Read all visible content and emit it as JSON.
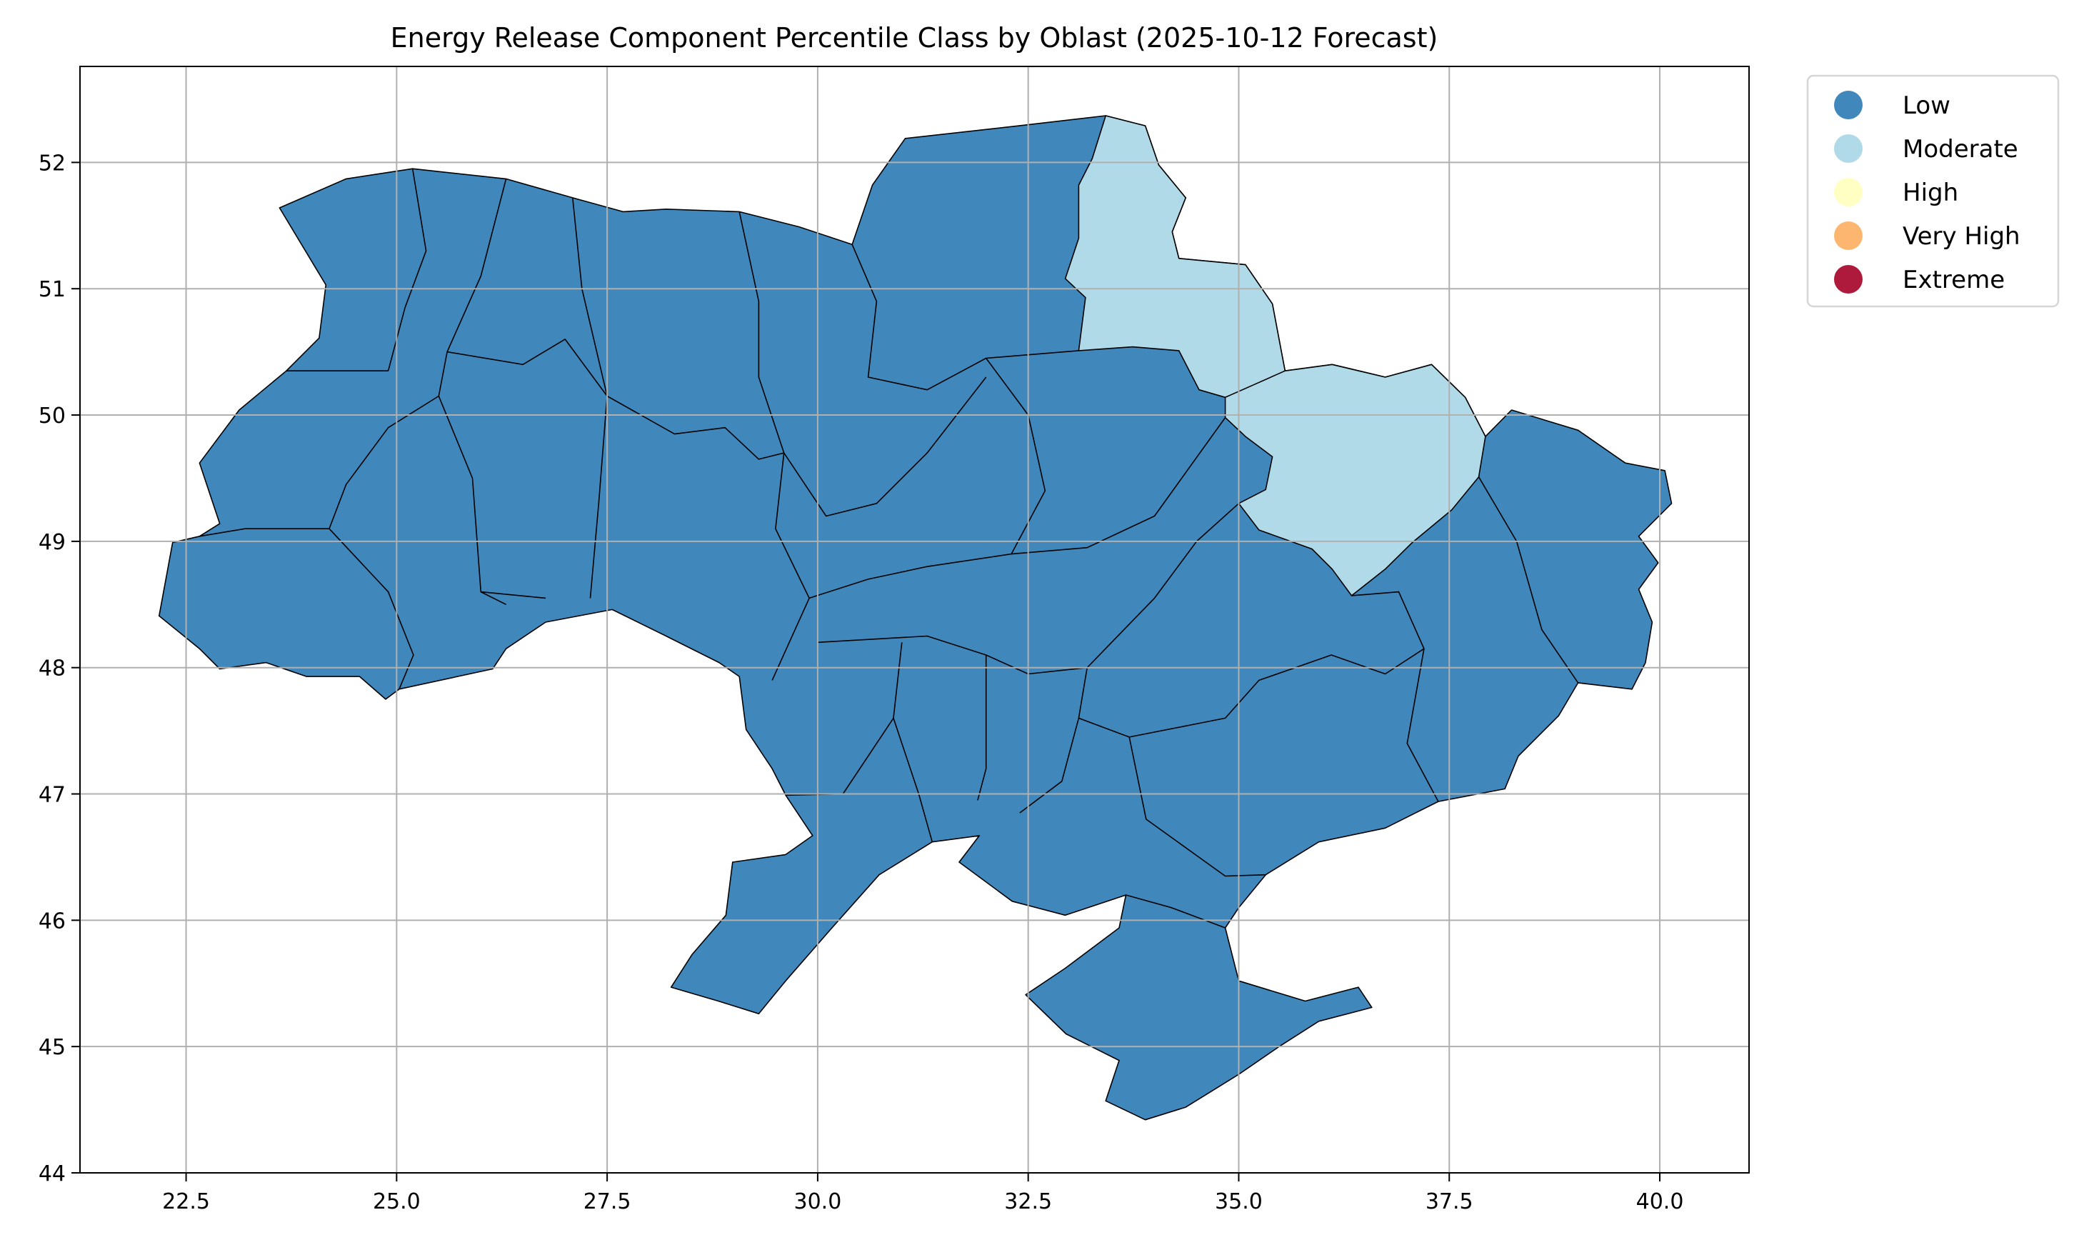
{
  "chart_data": {
    "type": "choropleth",
    "title": "Energy Release Component Percentile Class by Oblast (2025-10-12 Forecast)",
    "xlabel": "",
    "ylabel": "",
    "xlim": [
      21.24,
      41.06
    ],
    "ylim": [
      44.0,
      52.76
    ],
    "xticks": [
      "22.5",
      "25.0",
      "27.5",
      "30.0",
      "32.5",
      "35.0",
      "37.5",
      "40.0"
    ],
    "xtick_values": [
      22.5,
      25.0,
      27.5,
      30.0,
      32.5,
      35.0,
      37.5,
      40.0
    ],
    "yticks": [
      "44",
      "45",
      "46",
      "47",
      "48",
      "49",
      "50",
      "51",
      "52"
    ],
    "ytick_values": [
      44,
      45,
      46,
      47,
      48,
      49,
      50,
      51,
      52
    ],
    "grid": true,
    "legend_placement": "outside-top-right",
    "legend": [
      {
        "label": "Low",
        "color": "#4087bc"
      },
      {
        "label": "Moderate",
        "color": "#b1dae8"
      },
      {
        "label": "High",
        "color": "#ffffc4"
      },
      {
        "label": "Very High",
        "color": "#fdb66f"
      },
      {
        "label": "Extreme",
        "color": "#ad1a3c"
      }
    ],
    "regions": [
      {
        "class": "Low",
        "coords": [
          [
            23.61,
            51.64
          ],
          [
            24.4,
            51.87
          ],
          [
            25.19,
            51.95
          ],
          [
            26.3,
            51.87
          ],
          [
            27.09,
            51.72
          ],
          [
            27.69,
            51.61
          ],
          [
            28.2,
            51.63
          ],
          [
            29.07,
            51.61
          ],
          [
            29.78,
            51.49
          ],
          [
            30.41,
            51.35
          ],
          [
            30.65,
            51.82
          ],
          [
            31.04,
            52.19
          ],
          [
            32.39,
            52.29
          ],
          [
            33.42,
            52.37
          ],
          [
            33.89,
            52.29
          ],
          [
            34.05,
            51.98
          ],
          [
            34.37,
            51.72
          ],
          [
            34.21,
            51.45
          ],
          [
            34.29,
            51.24
          ],
          [
            35.08,
            51.19
          ],
          [
            35.4,
            50.88
          ],
          [
            35.55,
            50.35
          ],
          [
            36.11,
            50.4
          ],
          [
            36.74,
            50.3
          ],
          [
            37.29,
            50.4
          ],
          [
            37.69,
            50.14
          ],
          [
            37.93,
            49.83
          ],
          [
            38.24,
            50.04
          ],
          [
            39.03,
            49.88
          ],
          [
            39.59,
            49.62
          ],
          [
            40.06,
            49.56
          ],
          [
            40.14,
            49.3
          ],
          [
            39.75,
            49.04
          ],
          [
            39.98,
            48.83
          ],
          [
            39.75,
            48.62
          ],
          [
            39.91,
            48.36
          ],
          [
            39.83,
            48.04
          ],
          [
            39.67,
            47.83
          ],
          [
            39.03,
            47.88
          ],
          [
            38.8,
            47.62
          ],
          [
            38.32,
            47.3
          ],
          [
            38.16,
            47.04
          ],
          [
            37.37,
            46.94
          ],
          [
            36.74,
            46.73
          ],
          [
            35.95,
            46.62
          ],
          [
            35.32,
            46.36
          ],
          [
            35.0,
            46.1
          ],
          [
            34.84,
            45.94
          ],
          [
            35.0,
            45.52
          ],
          [
            35.79,
            45.36
          ],
          [
            36.42,
            45.47
          ],
          [
            36.58,
            45.31
          ],
          [
            35.95,
            45.2
          ],
          [
            35.48,
            45.0
          ],
          [
            35.0,
            44.78
          ],
          [
            34.37,
            44.52
          ],
          [
            33.89,
            44.42
          ],
          [
            33.42,
            44.57
          ],
          [
            33.58,
            44.89
          ],
          [
            32.95,
            45.1
          ],
          [
            32.47,
            45.41
          ],
          [
            32.94,
            45.62
          ],
          [
            33.58,
            45.94
          ],
          [
            33.66,
            46.2
          ],
          [
            32.94,
            46.04
          ],
          [
            32.31,
            46.15
          ],
          [
            31.68,
            46.46
          ],
          [
            31.92,
            46.67
          ],
          [
            31.36,
            46.62
          ],
          [
            30.73,
            46.36
          ],
          [
            30.17,
            45.94
          ],
          [
            29.62,
            45.52
          ],
          [
            29.3,
            45.26
          ],
          [
            28.82,
            45.36
          ],
          [
            28.26,
            45.47
          ],
          [
            28.51,
            45.73
          ],
          [
            28.91,
            46.04
          ],
          [
            28.99,
            46.46
          ],
          [
            29.62,
            46.52
          ],
          [
            29.94,
            46.67
          ],
          [
            29.62,
            46.99
          ],
          [
            29.46,
            47.2
          ],
          [
            29.15,
            47.51
          ],
          [
            29.07,
            47.93
          ],
          [
            28.83,
            48.04
          ],
          [
            28.2,
            48.25
          ],
          [
            27.56,
            48.46
          ],
          [
            26.77,
            48.36
          ],
          [
            26.3,
            48.15
          ],
          [
            26.14,
            47.99
          ],
          [
            25.03,
            47.83
          ],
          [
            24.87,
            47.75
          ],
          [
            24.56,
            47.93
          ],
          [
            23.93,
            47.93
          ],
          [
            23.45,
            48.04
          ],
          [
            22.9,
            47.99
          ],
          [
            22.66,
            48.15
          ],
          [
            22.18,
            48.41
          ],
          [
            22.34,
            48.99
          ],
          [
            22.66,
            49.04
          ],
          [
            22.9,
            49.14
          ],
          [
            22.66,
            49.62
          ],
          [
            23.13,
            50.04
          ],
          [
            23.69,
            50.35
          ],
          [
            24.08,
            50.61
          ],
          [
            24.16,
            51.03
          ]
        ]
      },
      {
        "class": "Moderate",
        "coords": [
          [
            33.42,
            52.37
          ],
          [
            33.89,
            52.29
          ],
          [
            34.05,
            51.98
          ],
          [
            34.37,
            51.72
          ],
          [
            34.21,
            51.45
          ],
          [
            34.29,
            51.24
          ],
          [
            35.08,
            51.19
          ],
          [
            35.4,
            50.88
          ],
          [
            35.55,
            50.35
          ],
          [
            35.24,
            50.25
          ],
          [
            34.84,
            50.14
          ],
          [
            34.53,
            50.2
          ],
          [
            34.29,
            50.51
          ],
          [
            33.74,
            50.54
          ],
          [
            33.1,
            50.51
          ],
          [
            33.18,
            50.93
          ],
          [
            32.94,
            51.08
          ],
          [
            33.1,
            51.4
          ],
          [
            33.1,
            51.82
          ],
          [
            33.26,
            52.03
          ]
        ]
      },
      {
        "class": "Moderate",
        "coords": [
          [
            34.84,
            50.14
          ],
          [
            35.55,
            50.35
          ],
          [
            36.11,
            50.4
          ],
          [
            36.74,
            50.3
          ],
          [
            37.29,
            50.4
          ],
          [
            37.69,
            50.14
          ],
          [
            37.93,
            49.83
          ],
          [
            37.85,
            49.51
          ],
          [
            37.53,
            49.25
          ],
          [
            37.06,
            48.99
          ],
          [
            36.74,
            48.78
          ],
          [
            36.34,
            48.57
          ],
          [
            36.11,
            48.78
          ],
          [
            35.87,
            48.94
          ],
          [
            35.24,
            49.09
          ],
          [
            35.0,
            49.3
          ],
          [
            35.32,
            49.41
          ],
          [
            35.4,
            49.67
          ],
          [
            35.08,
            49.83
          ],
          [
            34.84,
            49.98
          ]
        ]
      }
    ],
    "borders": [
      [
        [
          25.19,
          51.95
        ],
        [
          25.35,
          51.3
        ],
        [
          25.1,
          50.85
        ],
        [
          24.9,
          50.35
        ]
      ],
      [
        [
          26.3,
          51.87
        ],
        [
          26.0,
          51.1
        ],
        [
          25.6,
          50.5
        ],
        [
          25.5,
          50.15
        ],
        [
          24.9,
          49.9
        ],
        [
          24.4,
          49.45
        ],
        [
          24.2,
          49.1
        ]
      ],
      [
        [
          22.66,
          49.04
        ],
        [
          23.2,
          49.1
        ],
        [
          24.2,
          49.1
        ],
        [
          24.9,
          48.6
        ],
        [
          25.2,
          48.1
        ],
        [
          25.03,
          47.83
        ]
      ],
      [
        [
          23.69,
          50.35
        ],
        [
          24.9,
          50.35
        ]
      ],
      [
        [
          25.6,
          50.5
        ],
        [
          26.5,
          50.4
        ],
        [
          27.0,
          50.6
        ],
        [
          27.5,
          50.15
        ]
      ],
      [
        [
          25.5,
          50.15
        ],
        [
          25.9,
          49.5
        ],
        [
          26.0,
          48.6
        ],
        [
          26.3,
          48.5
        ]
      ],
      [
        [
          26.0,
          48.6
        ],
        [
          26.77,
          48.55
        ]
      ],
      [
        [
          27.09,
          51.72
        ],
        [
          27.2,
          51.0
        ],
        [
          27.5,
          50.15
        ],
        [
          27.4,
          49.3
        ],
        [
          27.3,
          48.55
        ]
      ],
      [
        [
          27.5,
          50.15
        ],
        [
          28.3,
          49.85
        ],
        [
          28.9,
          49.9
        ],
        [
          29.3,
          49.65
        ],
        [
          29.6,
          49.7
        ],
        [
          29.5,
          49.1
        ],
        [
          29.9,
          48.55
        ],
        [
          29.46,
          47.9
        ]
      ],
      [
        [
          29.07,
          51.61
        ],
        [
          29.3,
          50.9
        ],
        [
          29.3,
          50.3
        ],
        [
          29.6,
          49.7
        ]
      ],
      [
        [
          30.41,
          51.35
        ],
        [
          30.7,
          50.9
        ],
        [
          30.6,
          50.3
        ],
        [
          31.3,
          50.2
        ],
        [
          32.0,
          50.45
        ],
        [
          33.1,
          50.51
        ]
      ],
      [
        [
          29.6,
          49.7
        ],
        [
          30.1,
          49.2
        ],
        [
          30.7,
          49.3
        ],
        [
          31.3,
          49.7
        ],
        [
          32.0,
          50.3
        ]
      ],
      [
        [
          29.9,
          48.55
        ],
        [
          30.6,
          48.7
        ],
        [
          31.3,
          48.8
        ],
        [
          32.3,
          48.9
        ],
        [
          32.7,
          49.4
        ],
        [
          32.5,
          50.0
        ],
        [
          32.0,
          50.45
        ]
      ],
      [
        [
          32.3,
          48.9
        ],
        [
          33.2,
          48.95
        ],
        [
          34.0,
          49.2
        ],
        [
          34.84,
          49.98
        ]
      ],
      [
        [
          30.0,
          48.2
        ],
        [
          31.3,
          48.25
        ],
        [
          32.0,
          48.1
        ],
        [
          32.5,
          47.95
        ],
        [
          33.2,
          48.0
        ],
        [
          34.0,
          48.55
        ],
        [
          34.5,
          49.0
        ],
        [
          35.0,
          49.3
        ]
      ],
      [
        [
          33.2,
          48.0
        ],
        [
          33.1,
          47.6
        ],
        [
          33.7,
          47.45
        ],
        [
          34.84,
          47.6
        ],
        [
          35.24,
          47.9
        ],
        [
          36.1,
          48.1
        ],
        [
          36.74,
          47.95
        ],
        [
          37.2,
          48.15
        ]
      ],
      [
        [
          36.34,
          48.57
        ],
        [
          36.9,
          48.6
        ],
        [
          37.2,
          48.15
        ],
        [
          37.0,
          47.4
        ],
        [
          37.37,
          46.94
        ]
      ],
      [
        [
          37.85,
          49.51
        ],
        [
          38.3,
          49.0
        ],
        [
          38.6,
          48.3
        ],
        [
          39.03,
          47.88
        ]
      ],
      [
        [
          31.0,
          48.2
        ],
        [
          30.9,
          47.6
        ],
        [
          31.2,
          47.0
        ],
        [
          31.36,
          46.62
        ]
      ],
      [
        [
          32.0,
          48.1
        ],
        [
          32.0,
          47.2
        ],
        [
          31.9,
          46.95
        ]
      ],
      [
        [
          33.1,
          47.6
        ],
        [
          32.9,
          47.1
        ],
        [
          32.4,
          46.85
        ]
      ],
      [
        [
          33.7,
          47.45
        ],
        [
          33.9,
          46.8
        ],
        [
          34.84,
          46.35
        ],
        [
          35.32,
          46.36
        ]
      ],
      [
        [
          33.66,
          46.2
        ],
        [
          34.2,
          46.1
        ],
        [
          34.84,
          45.94
        ]
      ],
      [
        [
          29.62,
          46.99
        ],
        [
          30.3,
          47.0
        ],
        [
          30.9,
          47.6
        ]
      ]
    ]
  }
}
